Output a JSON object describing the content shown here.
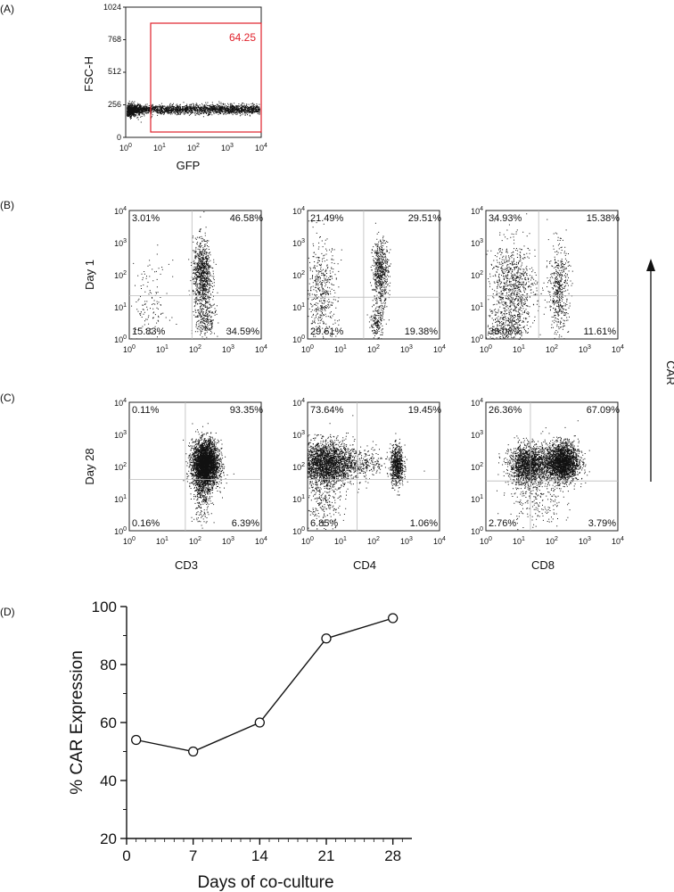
{
  "panels": {
    "a_label": "(A)",
    "b_label": "(B)",
    "c_label": "(C)",
    "d_label": "(D)"
  },
  "panel_a": {
    "ylabel": "FSC-H",
    "xlabel": "GFP",
    "gate_value": "64.25",
    "gate_color": "#e0202a",
    "y_ticks": [
      "1024",
      "768",
      "512",
      "256",
      "0"
    ],
    "x_ticks": [
      {
        "base": "10",
        "exp": "0"
      },
      {
        "base": "10",
        "exp": "1"
      },
      {
        "base": "10",
        "exp": "2"
      },
      {
        "base": "10",
        "exp": "3"
      },
      {
        "base": "10",
        "exp": "4"
      }
    ]
  },
  "log_ticks": [
    {
      "base": "10",
      "exp": "0"
    },
    {
      "base": "10",
      "exp": "1"
    },
    {
      "base": "10",
      "exp": "2"
    },
    {
      "base": "10",
      "exp": "3"
    },
    {
      "base": "10",
      "exp": "4"
    }
  ],
  "row_labels": [
    "Day 1",
    "Day 28"
  ],
  "column_labels": [
    "CD3",
    "CD4",
    "CD8"
  ],
  "car_label": "CAR",
  "quadrants": [
    [
      {
        "ul": "3.01%",
        "ur": "46.58%",
        "ll": "15.83%",
        "lr": "34.59%"
      },
      {
        "ul": "21.49%",
        "ur": "29.51%",
        "ll": "29.61%",
        "lr": "19.38%"
      },
      {
        "ul": "34.93%",
        "ur": "15.38%",
        "ll": "38.08%",
        "lr": "11.61%"
      }
    ],
    [
      {
        "ul": "0.11%",
        "ur": "93.35%",
        "ll": "0.16%",
        "lr": "6.39%"
      },
      {
        "ul": "73.64%",
        "ur": "19.45%",
        "ll": "6.85%",
        "lr": "1.06%"
      },
      {
        "ul": "26.36%",
        "ur": "67.09%",
        "ll": "2.76%",
        "lr": "3.79%"
      }
    ]
  ],
  "chart_data": {
    "type": "line",
    "x": [
      1,
      7,
      14,
      21,
      28
    ],
    "y": [
      54,
      50,
      60,
      89,
      96
    ],
    "xlabel": "Days of co-culture",
    "ylabel": "% CAR Expression",
    "xlim": [
      0,
      30
    ],
    "ylim": [
      20,
      100
    ],
    "x_ticks": [
      "0",
      "7",
      "14",
      "21",
      "28"
    ],
    "y_ticks": [
      "20",
      "40",
      "60",
      "80",
      "100"
    ],
    "grid": false,
    "marker": "open-circle"
  }
}
